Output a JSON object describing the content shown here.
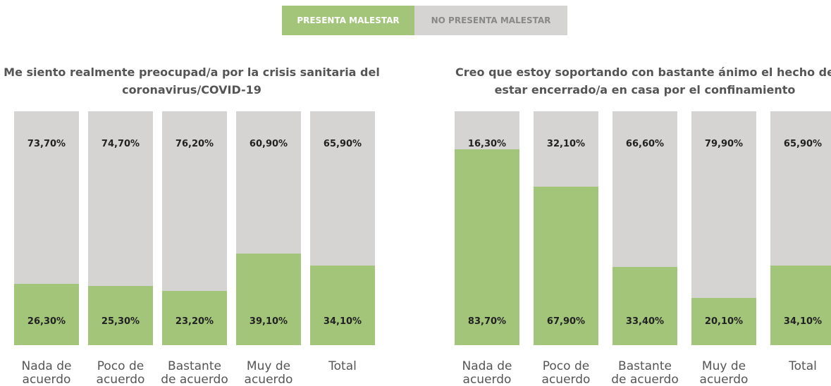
{
  "chart_data": [
    {
      "type": "bar",
      "stacked": true,
      "title": "Me siento realmente preocupad/a por la crisis sanitaria del coronavirus/COVID-19",
      "categories": [
        "Nada de acuerdo",
        "Poco de acuerdo",
        "Bastante de acuerdo",
        "Muy de acuerdo",
        "Total"
      ],
      "series": [
        {
          "name": "PRESENTA MALESTAR",
          "color": "#a2c57a",
          "values": [
            26.3,
            25.3,
            23.2,
            39.1,
            34.1
          ],
          "value_labels": [
            "26,30%",
            "25,30%",
            "23,20%",
            "39,10%",
            "34,10%"
          ]
        },
        {
          "name": "NO PRESENTA MALESTAR",
          "color": "#d5d4d3",
          "values": [
            73.7,
            74.7,
            76.2,
            60.9,
            65.9
          ],
          "value_labels": [
            "73,70%",
            "74,70%",
            "76,20%",
            "60,90%",
            "65,90%"
          ]
        }
      ]
    },
    {
      "type": "bar",
      "stacked": true,
      "title": "Creo que estoy soportando con bastante ánimo el hecho de estar encerrado/a en casa por el confinamiento",
      "categories": [
        "Nada de acuerdo",
        "Poco de acuerdo",
        "Bastante de acuerdo",
        "Muy de acuerdo",
        "Total"
      ],
      "series": [
        {
          "color": "#a2c57a",
          "values": [
            83.7,
            67.9,
            33.4,
            20.1,
            34.1
          ],
          "value_labels": [
            "83,70%",
            "67,90%",
            "33,40%",
            "20,10%",
            "34,10%"
          ]
        },
        {
          "color": "#d5d4d3",
          "values": [
            16.3,
            32.1,
            66.6,
            79.9,
            65.9
          ],
          "value_labels": [
            "16,30%",
            "32,10%",
            "66,60%",
            "79,90%",
            "65,90%"
          ]
        }
      ]
    }
  ]
}
